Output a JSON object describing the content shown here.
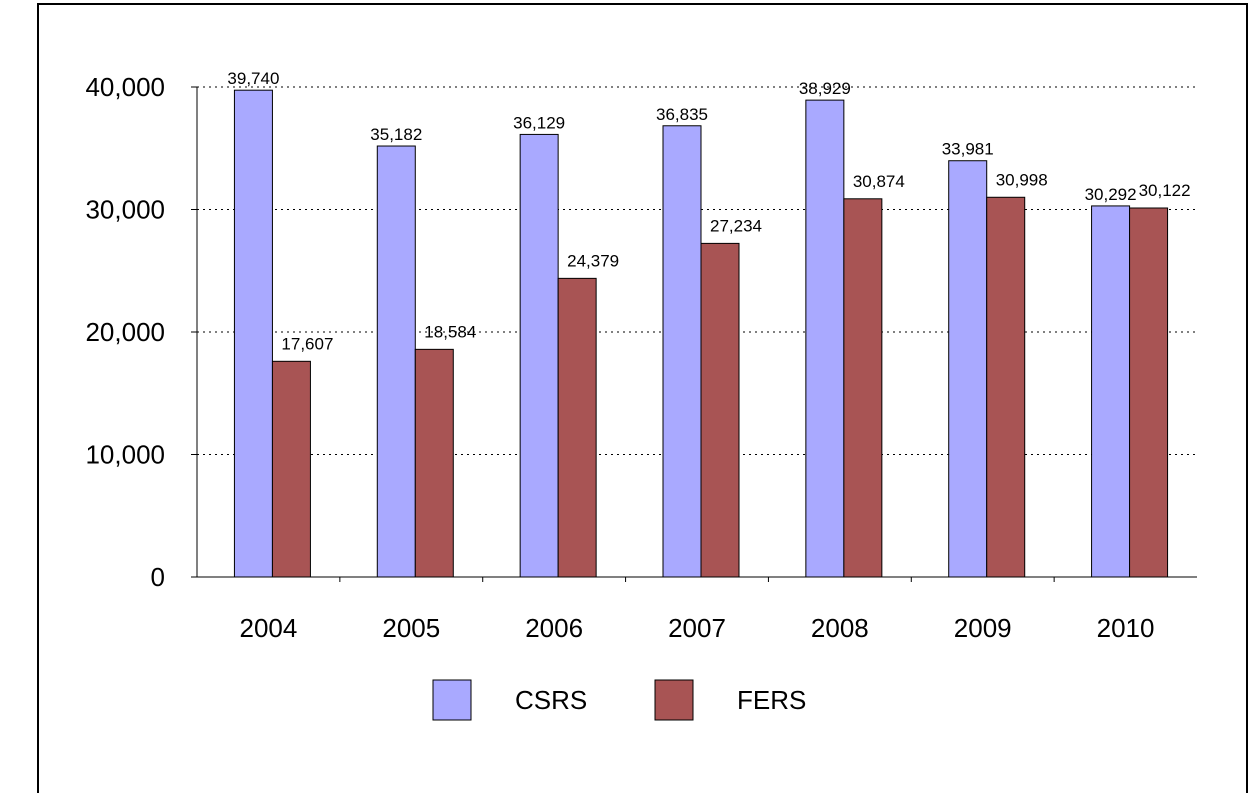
{
  "chart_data": {
    "type": "bar",
    "categories": [
      "2004",
      "2005",
      "2006",
      "2007",
      "2008",
      "2009",
      "2010"
    ],
    "series": [
      {
        "name": "CSRS",
        "color": "#a9a9ff",
        "values": [
          39740,
          35182,
          36129,
          36835,
          38929,
          33981,
          30292
        ],
        "value_labels": [
          "39,740",
          "35,182",
          "36,129",
          "36,835",
          "38,929",
          "33,981",
          "30,292"
        ]
      },
      {
        "name": "FERS",
        "color": "#a85454",
        "values": [
          17607,
          18584,
          24379,
          27234,
          30874,
          30998,
          30122
        ],
        "value_labels": [
          "17,607",
          "18,584",
          "24,379",
          "27,234",
          "30,874",
          "30,998",
          "30,122"
        ]
      }
    ],
    "ylim": [
      0,
      40000
    ],
    "yticks": [
      0,
      {
        "value": 10000,
        "label": "10,000"
      },
      {
        "value": 20000,
        "label": "20,000"
      },
      {
        "value": 30000,
        "label": "30,000"
      },
      {
        "value": 40000,
        "label": "40,000"
      }
    ],
    "grid": true,
    "legend": "bottom"
  }
}
